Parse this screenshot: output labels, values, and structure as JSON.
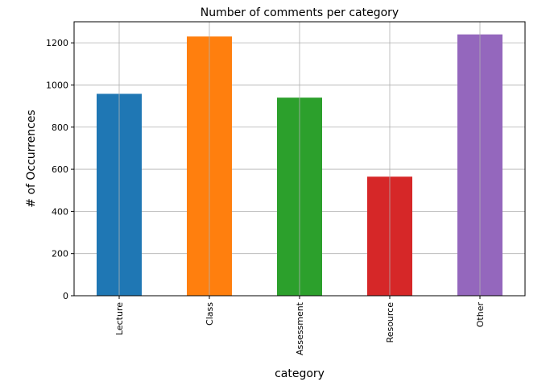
{
  "chart_data": {
    "type": "bar",
    "title": "Number of comments per category",
    "xlabel": "category",
    "ylabel": "# of Occurrences",
    "categories": [
      "Lecture",
      "Class",
      "Assessment",
      "Resource",
      "Other"
    ],
    "values": [
      958,
      1230,
      940,
      565,
      1240
    ],
    "colors": [
      "#1f77b4",
      "#ff7f0e",
      "#2ca02c",
      "#d62728",
      "#9467bd"
    ],
    "ylim": [
      0,
      1300
    ],
    "yticks": [
      0,
      200,
      400,
      600,
      800,
      1000,
      1200
    ],
    "grid": true,
    "legend": "none"
  }
}
